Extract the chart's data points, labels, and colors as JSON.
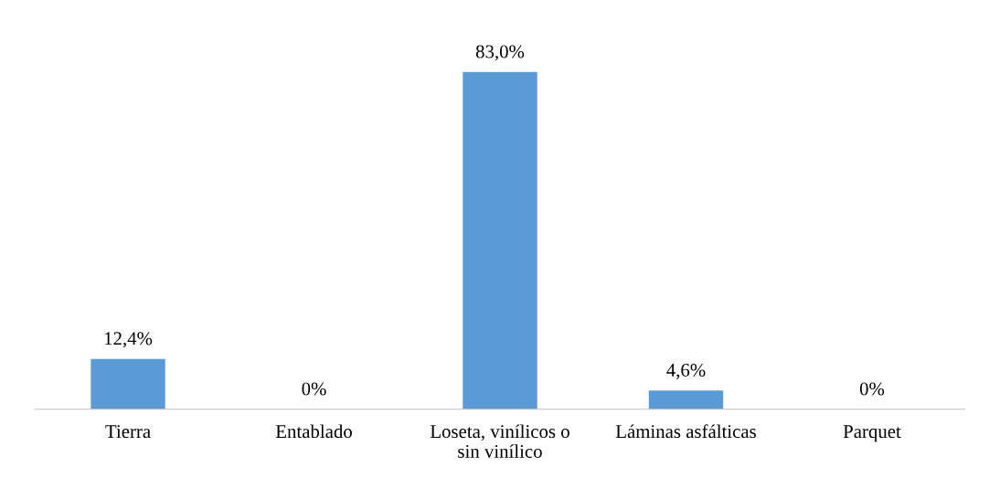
{
  "chart_data": {
    "type": "bar",
    "categories": [
      "Tierra",
      "Entablado",
      "Loseta, vinílicos o sin vinílico",
      "Láminas asfálticas",
      "Parquet"
    ],
    "values": [
      12.4,
      0,
      83.0,
      4.6,
      0
    ],
    "value_labels": [
      "12,4%",
      "0%",
      "83,0%",
      "4,6%",
      "0%"
    ],
    "color": "#5b9bd5",
    "grid": false,
    "legend": false
  }
}
